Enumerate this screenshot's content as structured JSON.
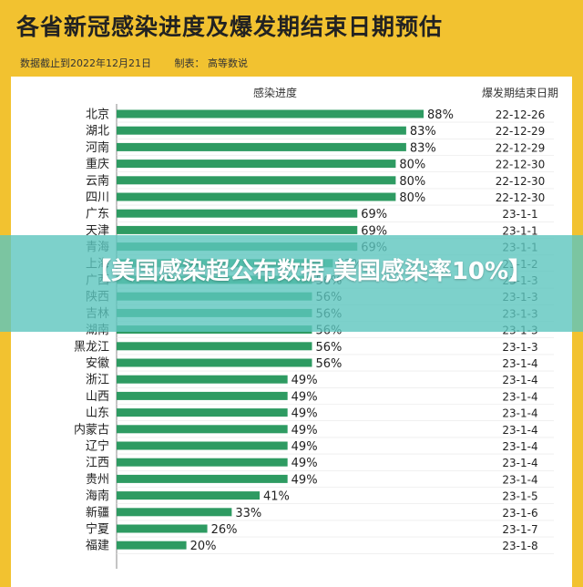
{
  "title": "各省新冠感染进度及爆发期结束日期预估",
  "meta": {
    "data_cutoff": "数据截止到2022年12月21日",
    "producer": "制表： 高等数说"
  },
  "banner": {
    "text": "【美国感染超公布数据,美国感染率10%】"
  },
  "colors": {
    "background": "#f2c230",
    "bar": "#2e9b62",
    "banner": "#5cc6be"
  },
  "chart_data": {
    "type": "bar",
    "orientation": "horizontal",
    "xlabel": "感染进度",
    "date_header": "爆发期结束日期",
    "unit": "%",
    "categories": [
      "北京",
      "湖北",
      "河南",
      "重庆",
      "云南",
      "四川",
      "广东",
      "天津",
      "青海",
      "上海",
      "广西",
      "陕西",
      "吉林",
      "湖南",
      "黑龙江",
      "安徽",
      "浙江",
      "山西",
      "山东",
      "内蒙古",
      "辽宁",
      "江西",
      "贵州",
      "海南",
      "新疆",
      "宁夏",
      "福建"
    ],
    "values": [
      88,
      83,
      83,
      80,
      80,
      80,
      69,
      69,
      69,
      62,
      56,
      56,
      56,
      56,
      56,
      56,
      49,
      49,
      49,
      49,
      49,
      49,
      49,
      41,
      33,
      26,
      20
    ],
    "labels": [
      "88%",
      "83%",
      "83%",
      "80%",
      "80%",
      "80%",
      "69%",
      "69%",
      "69%",
      "62%",
      "56%",
      "56%",
      "56%",
      "56%",
      "56%",
      "56%",
      "49%",
      "49%",
      "49%",
      "49%",
      "49%",
      "49%",
      "49%",
      "41%",
      "33%",
      "26%",
      "20%"
    ],
    "end_dates": [
      "22-12-26",
      "22-12-29",
      "22-12-29",
      "22-12-30",
      "22-12-30",
      "22-12-30",
      "23-1-1",
      "23-1-1",
      "23-1-1",
      "23-1-2",
      "23-1-3",
      "23-1-3",
      "23-1-3",
      "23-1-3",
      "23-1-3",
      "23-1-4",
      "23-1-4",
      "23-1-4",
      "23-1-4",
      "23-1-4",
      "23-1-4",
      "23-1-4",
      "23-1-4",
      "23-1-5",
      "23-1-6",
      "23-1-7",
      "23-1-8"
    ],
    "xlim": [
      0,
      100
    ]
  }
}
